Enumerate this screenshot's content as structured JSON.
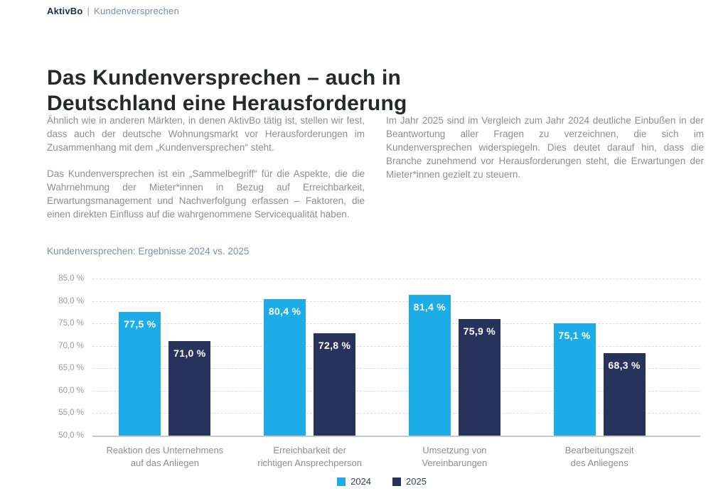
{
  "header": {
    "brand": "AktivBo",
    "separator": "|",
    "section": "Kundenversprechen"
  },
  "title": {
    "line1": "Das Kundenversprechen – auch in",
    "line2": "Deutschland eine Herausforderung"
  },
  "intro": {
    "left_paragraphs": [
      "Ähnlich wie in anderen Märkten, in denen AktivBo tätig ist, stellen wir fest, dass auch der deutsche Wohnungsmarkt vor Herausforderungen im Zusammenhang mit dem „Kundenversprechen“ steht.",
      "Das Kundenversprechen ist ein „Sammelbegriff“ für die Aspekte, die die Wahrnehmung der Mieter*innen in Bezug auf Erreichbarkeit, Erwartungsmanagement und Nachverfolgung erfassen – Faktoren, die einen direkten Einfluss auf die wahrgenommene Servicequalität haben."
    ],
    "right_paragraphs": [
      "Im Jahr 2025 sind im Vergleich zum Jahr 2024 deutliche Einbußen in der Beantwortung aller Fragen zu verzeichnen, die sich im Kundenversprechen widerspiegeln. Dies deutet darauf hin, dass die Branche zunehmend vor Herausforderungen steht, die Erwartungen der Mieter*innen gezielt zu steuern."
    ]
  },
  "chart_data": {
    "type": "bar",
    "title": "Kundenversprechen: Ergebnisse 2024 vs. 2025",
    "categories": [
      "Reaktion des Unternehmens\nauf das Anliegen",
      "Erreichbarkeit der\nrichtigen Ansprechperson",
      "Umsetzung von\nVereinbarungen",
      "Bearbeitungszeit\ndes Anliegens"
    ],
    "series": [
      {
        "name": "2024",
        "color": "#1CACE8",
        "values": [
          77.5,
          80.4,
          81.4,
          75.1
        ],
        "labels": [
          "77,5 %",
          "80,4 %",
          "81,4 %",
          "75,1 %"
        ]
      },
      {
        "name": "2025",
        "color": "#27335B",
        "values": [
          71.0,
          72.8,
          75.9,
          68.3
        ],
        "labels": [
          "71,0 %",
          "72,8 %",
          "75,9 %",
          "68,3 %"
        ]
      }
    ],
    "ylim": [
      50,
      85
    ],
    "y_ticks": [
      {
        "value": 85,
        "label": "85,0 %"
      },
      {
        "value": 80,
        "label": "80,0 %"
      },
      {
        "value": 75,
        "label": "75,0 %"
      },
      {
        "value": 70,
        "label": "70,0 %"
      },
      {
        "value": 65,
        "label": "65,0 %"
      },
      {
        "value": 60,
        "label": "60,0 %"
      },
      {
        "value": 55,
        "label": "55,0 %"
      },
      {
        "value": 50,
        "label": "50,0 %"
      }
    ],
    "grid": "horizontal dashed",
    "legend_position": "bottom center"
  }
}
